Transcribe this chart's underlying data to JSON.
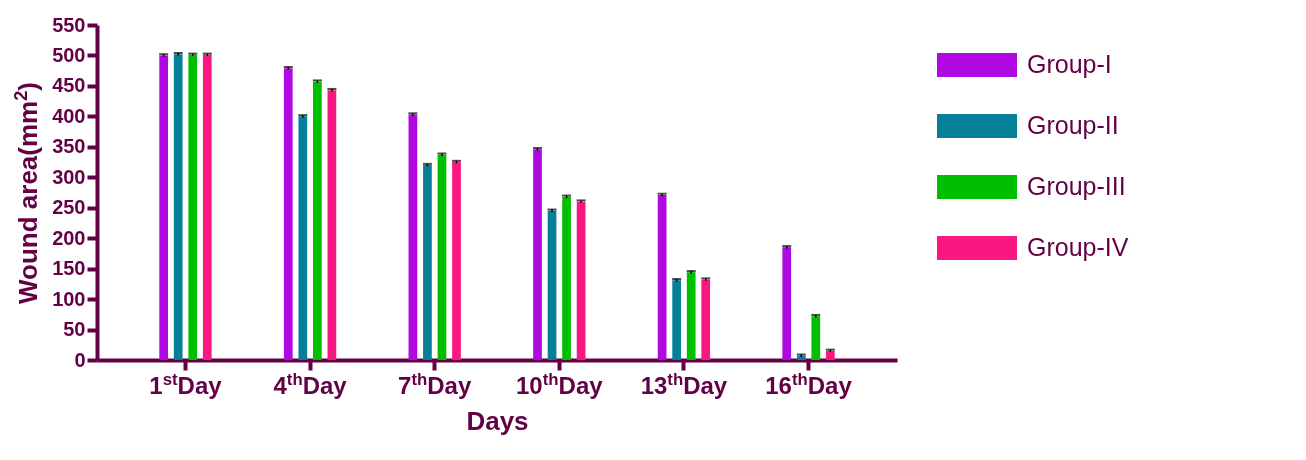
{
  "chart_data": {
    "type": "bar",
    "xlabel": "Days",
    "ylabel": "Wound area(mm$^{2}$)",
    "categories": [
      "1$^{st}$Day",
      "4$^{th}$Day",
      "7$^{th}$Day",
      "10$^{th}$Day",
      "13$^{th}$Day",
      "16$^{th}$Day"
    ],
    "series": [
      {
        "name": "Group-I",
        "color": "#b008e0",
        "values": [
          500,
          479,
          403,
          346,
          271,
          185
        ],
        "errors": [
          2,
          2,
          2,
          2,
          2,
          2
        ]
      },
      {
        "name": "Group-II",
        "color": "#067f98",
        "values": [
          502,
          400,
          320,
          245,
          131,
          7
        ],
        "errors": [
          2,
          2,
          2,
          2,
          2,
          2
        ]
      },
      {
        "name": "Group-III",
        "color": "#00be00",
        "values": [
          501,
          457,
          337,
          268,
          144,
          72
        ],
        "errors": [
          2,
          2,
          2,
          2,
          2,
          2
        ]
      },
      {
        "name": "Group-IV",
        "color": "#f8187f",
        "values": [
          501,
          443,
          325,
          260,
          132,
          15
        ],
        "errors": [
          2,
          2,
          2,
          2,
          2,
          2
        ]
      }
    ],
    "ylim": [
      0,
      550
    ],
    "yticks": [
      0,
      50,
      100,
      150,
      200,
      250,
      300,
      350,
      400,
      450,
      500,
      550
    ],
    "grid": false,
    "legend": "top right"
  }
}
